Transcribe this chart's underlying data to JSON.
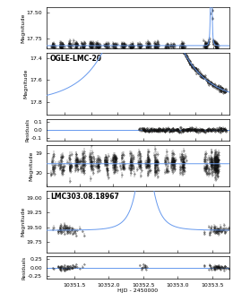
{
  "panel1": {
    "ylabel": "Magnitude",
    "xlim": [
      5000,
      10500
    ],
    "ylim": [
      17.45,
      17.85
    ],
    "yticks": [
      17.5,
      17.75
    ],
    "xticks": [
      5000,
      6000,
      7000,
      8000,
      9000,
      10000
    ],
    "baseline_mag": 17.82,
    "t0": 9950,
    "tE": 30,
    "u0": 0.02,
    "data_scatter": 0.018,
    "model_color": "#6699ee",
    "data_color": "#111111"
  },
  "panel2": {
    "title": "OGLE-LMC-20",
    "ylabel": "Magnitude",
    "xlim": [
      9430,
      10130
    ],
    "ylim": [
      17.35,
      17.92
    ],
    "yticks": [
      17.4,
      17.6,
      17.8
    ],
    "xticks": [
      9500,
      9600,
      9700,
      9800,
      9900,
      10000,
      10100
    ],
    "baseline_mag": 17.82,
    "t0": 9800,
    "tE": 200,
    "u0": 0.08,
    "data_scatter": 0.012,
    "model_color": "#6699ee",
    "data_color": "#111111"
  },
  "panel2res": {
    "ylabel": "Residuals",
    "xlabel": "HJD - 2450000",
    "xlim": [
      9430,
      10130
    ],
    "ylim": [
      -0.13,
      0.13
    ],
    "yticks": [
      -0.1,
      0.0,
      0.1
    ],
    "xticks": [
      9500,
      9600,
      9700,
      9800,
      9900,
      10000,
      10100
    ],
    "model_color": "#6699ee",
    "data_color": "#111111"
  },
  "panel3": {
    "ylabel": "Magnitude",
    "xlim": [
      5000,
      10500
    ],
    "ylim": [
      18.6,
      20.7
    ],
    "yticks": [
      19,
      20
    ],
    "xticks": [
      5000,
      6000,
      7000,
      8000,
      9000,
      10000
    ],
    "baseline_mag": 19.55,
    "data_scatter": 0.28,
    "model_color": "#6699ee",
    "data_color": "#111111"
  },
  "panel4": {
    "title": "LMC303.08.18967",
    "ylabel": "Magnitude",
    "xlim": [
      10351.1,
      10353.75
    ],
    "ylim": [
      18.88,
      19.92
    ],
    "yticks": [
      19.0,
      19.25,
      19.5,
      19.75
    ],
    "xticks": [
      10351.5,
      10352.0,
      10352.5,
      10353.0,
      10353.5
    ],
    "baseline_mag": 19.55,
    "t0": 10352.52,
    "tE": 0.22,
    "u0": 0.01,
    "data_scatter": 0.035,
    "model_color": "#6699ee",
    "data_color": "#111111"
  },
  "panel4res": {
    "ylabel": "Residuals",
    "xlabel": "HJD - 2450000",
    "xlim": [
      10351.1,
      10353.75
    ],
    "ylim": [
      -0.32,
      0.32
    ],
    "yticks": [
      -0.25,
      0.0,
      0.25
    ],
    "xticks": [
      10351.5,
      10352.0,
      10352.5,
      10353.0,
      10353.5
    ],
    "model_color": "#6699ee",
    "data_color": "#111111"
  },
  "bg_color": "#ffffff",
  "tick_fontsize": 4.5,
  "label_fontsize": 4.5,
  "title_fontsize": 5.5
}
